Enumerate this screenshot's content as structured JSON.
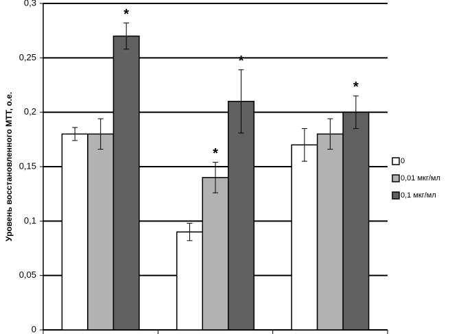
{
  "chart_data": {
    "type": "bar",
    "y_label": "Уровень восстановленного МТТ, о.е.",
    "categories": [
      null,
      null,
      null
    ],
    "series": [
      {
        "name": "0",
        "color": "#ffffff",
        "values": [
          0.18,
          0.09,
          0.17
        ],
        "errors": [
          0.006,
          0.008,
          0.015
        ]
      },
      {
        "name": "0,01 мкг/мл",
        "color": "#b2b2b2",
        "values": [
          0.18,
          0.14,
          0.18
        ],
        "errors": [
          0.014,
          0.014,
          0.014
        ],
        "markers": [
          null,
          "*",
          null
        ]
      },
      {
        "name": "0,1 мкг/мл",
        "color": "#606060",
        "values": [
          0.27,
          0.21,
          0.2
        ],
        "errors": [
          0.012,
          0.029,
          0.015
        ],
        "markers": [
          "*",
          "*",
          "*"
        ]
      }
    ],
    "ylim": [
      0,
      0.3
    ],
    "yticks": [
      0,
      {
        "value": 0.05,
        "label": "0,05"
      },
      {
        "value": 0.1,
        "label": "0,1"
      },
      {
        "value": 0.15,
        "label": "0,15"
      },
      {
        "value": 0.2,
        "label": "0,2"
      },
      {
        "value": 0.25,
        "label": "0,25"
      },
      {
        "value": 0.3,
        "label": "0,3"
      }
    ],
    "grid": true,
    "legend": "right"
  }
}
